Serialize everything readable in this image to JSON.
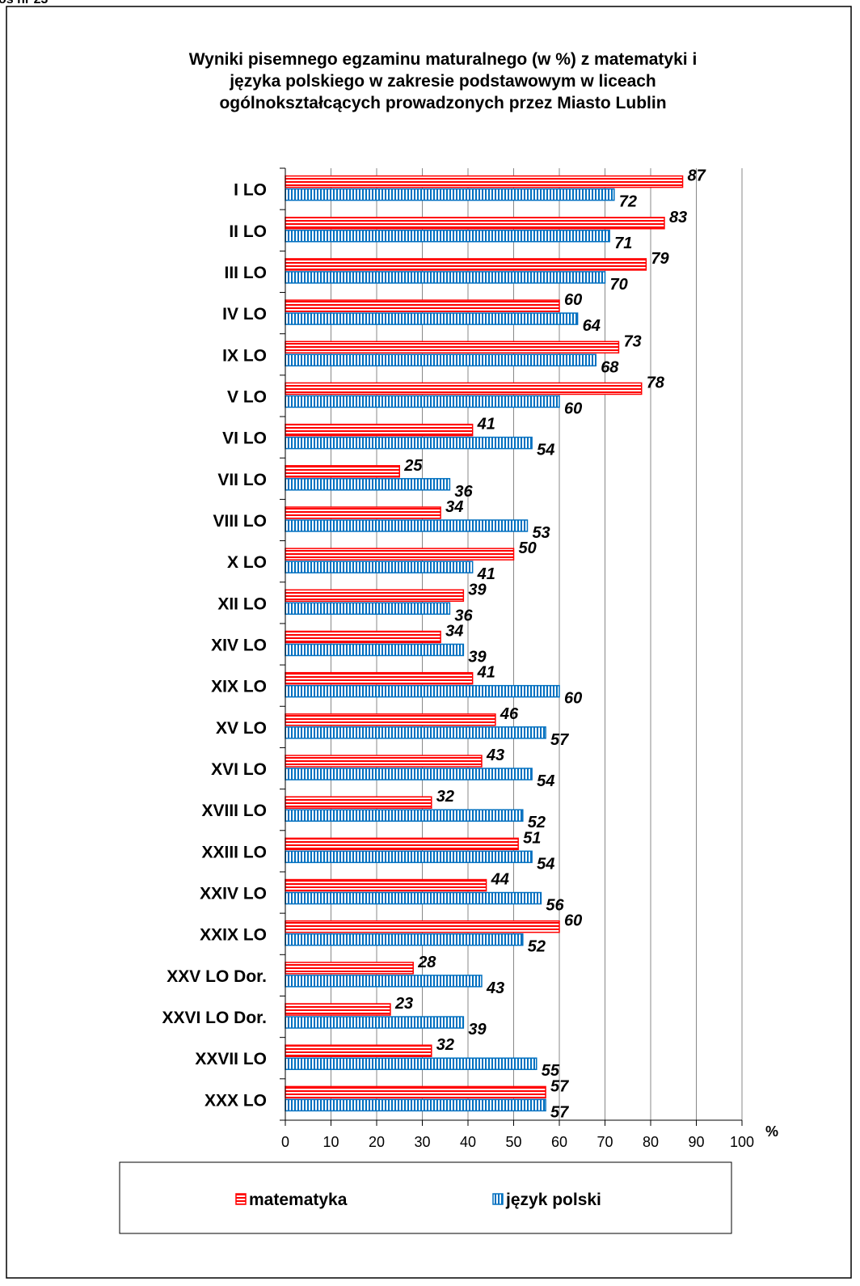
{
  "chart_data": {
    "type": "bar",
    "orientation": "horizontal",
    "corner_note": "os nr 23",
    "title": [
      "Wyniki pisemnego egzaminu maturalnego (w %)  z matematyki i",
      "języka polskiego w zakresie podstawowym  w liceach",
      "ogólnokształcących prowadzonych przez Miasto Lublin"
    ],
    "categories": [
      "I LO",
      "II LO",
      "III LO",
      "IV LO",
      "IX LO",
      "V LO",
      "VI LO",
      "VII LO",
      "VIII LO",
      "X LO",
      "XII LO",
      "XIV LO",
      "XIX LO",
      "XV LO",
      "XVI LO",
      "XVIII LO",
      "XXIII LO",
      "XXIV LO",
      "XXIX LO",
      "XXV LO Dor.",
      "XXVI LO Dor.",
      "XXVII LO",
      "XXX LO"
    ],
    "series": [
      {
        "name": "matematyka",
        "color": "#ff0000",
        "values": [
          87,
          83,
          79,
          60,
          73,
          78,
          41,
          25,
          34,
          50,
          39,
          34,
          41,
          46,
          43,
          32,
          51,
          44,
          60,
          28,
          23,
          32,
          57
        ]
      },
      {
        "name": "język polski",
        "color": "#0070c0",
        "values": [
          72,
          71,
          70,
          64,
          68,
          60,
          54,
          36,
          53,
          41,
          36,
          39,
          60,
          57,
          54,
          52,
          54,
          56,
          52,
          43,
          39,
          55,
          57
        ]
      }
    ],
    "xlim": [
      0,
      100
    ],
    "xticks": [
      0,
      10,
      20,
      30,
      40,
      50,
      60,
      70,
      80,
      90,
      100
    ],
    "xlabel": "%",
    "grid": true,
    "legend": "bottom"
  }
}
